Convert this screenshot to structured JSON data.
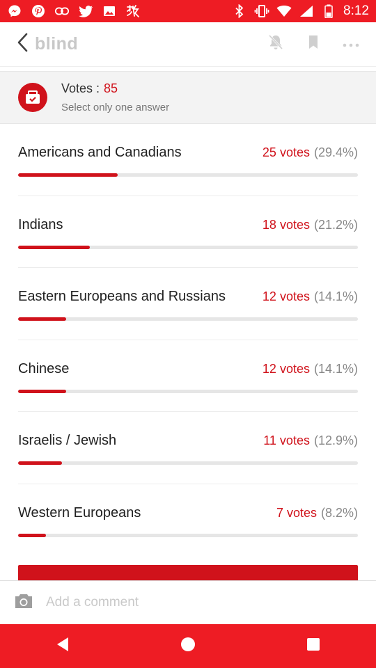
{
  "status_bar": {
    "time": "8:12",
    "left_icons": [
      "messenger-icon",
      "pinterest-icon",
      "link-icon",
      "twitter-icon",
      "image-icon",
      "fiverr-icon"
    ],
    "right_icons": [
      "bluetooth-icon",
      "vibrate-icon",
      "wifi-icon",
      "signal-icon",
      "battery-icon"
    ],
    "color": "#ee1c24"
  },
  "app_bar": {
    "logo": "blind",
    "actions": [
      "bell-muted-icon",
      "bookmark-icon",
      "more-icon"
    ]
  },
  "poll": {
    "votes_label": "Votes :",
    "votes_total": "85",
    "hint": "Select only one answer",
    "accent": "#d0121b",
    "options": [
      {
        "label": "Americans and Canadians",
        "votes": "25 votes",
        "percent": "(29.4%)",
        "ratio": 0.294
      },
      {
        "label": "Indians",
        "votes": "18 votes",
        "percent": "(21.2%)",
        "ratio": 0.212
      },
      {
        "label": "Eastern Europeans and Russians",
        "votes": "12 votes",
        "percent": "(14.1%)",
        "ratio": 0.141
      },
      {
        "label": "Chinese",
        "votes": "12 votes",
        "percent": "(14.1%)",
        "ratio": 0.141
      },
      {
        "label": "Israelis / Jewish",
        "votes": "11 votes",
        "percent": "(12.9%)",
        "ratio": 0.129
      },
      {
        "label": "Western Europeans",
        "votes": "7 votes",
        "percent": "(8.2%)",
        "ratio": 0.082
      }
    ]
  },
  "comment": {
    "placeholder": "Add a comment"
  },
  "nav_bar": {
    "buttons": [
      "back-triangle-icon",
      "home-circle-icon",
      "recents-square-icon"
    ]
  }
}
